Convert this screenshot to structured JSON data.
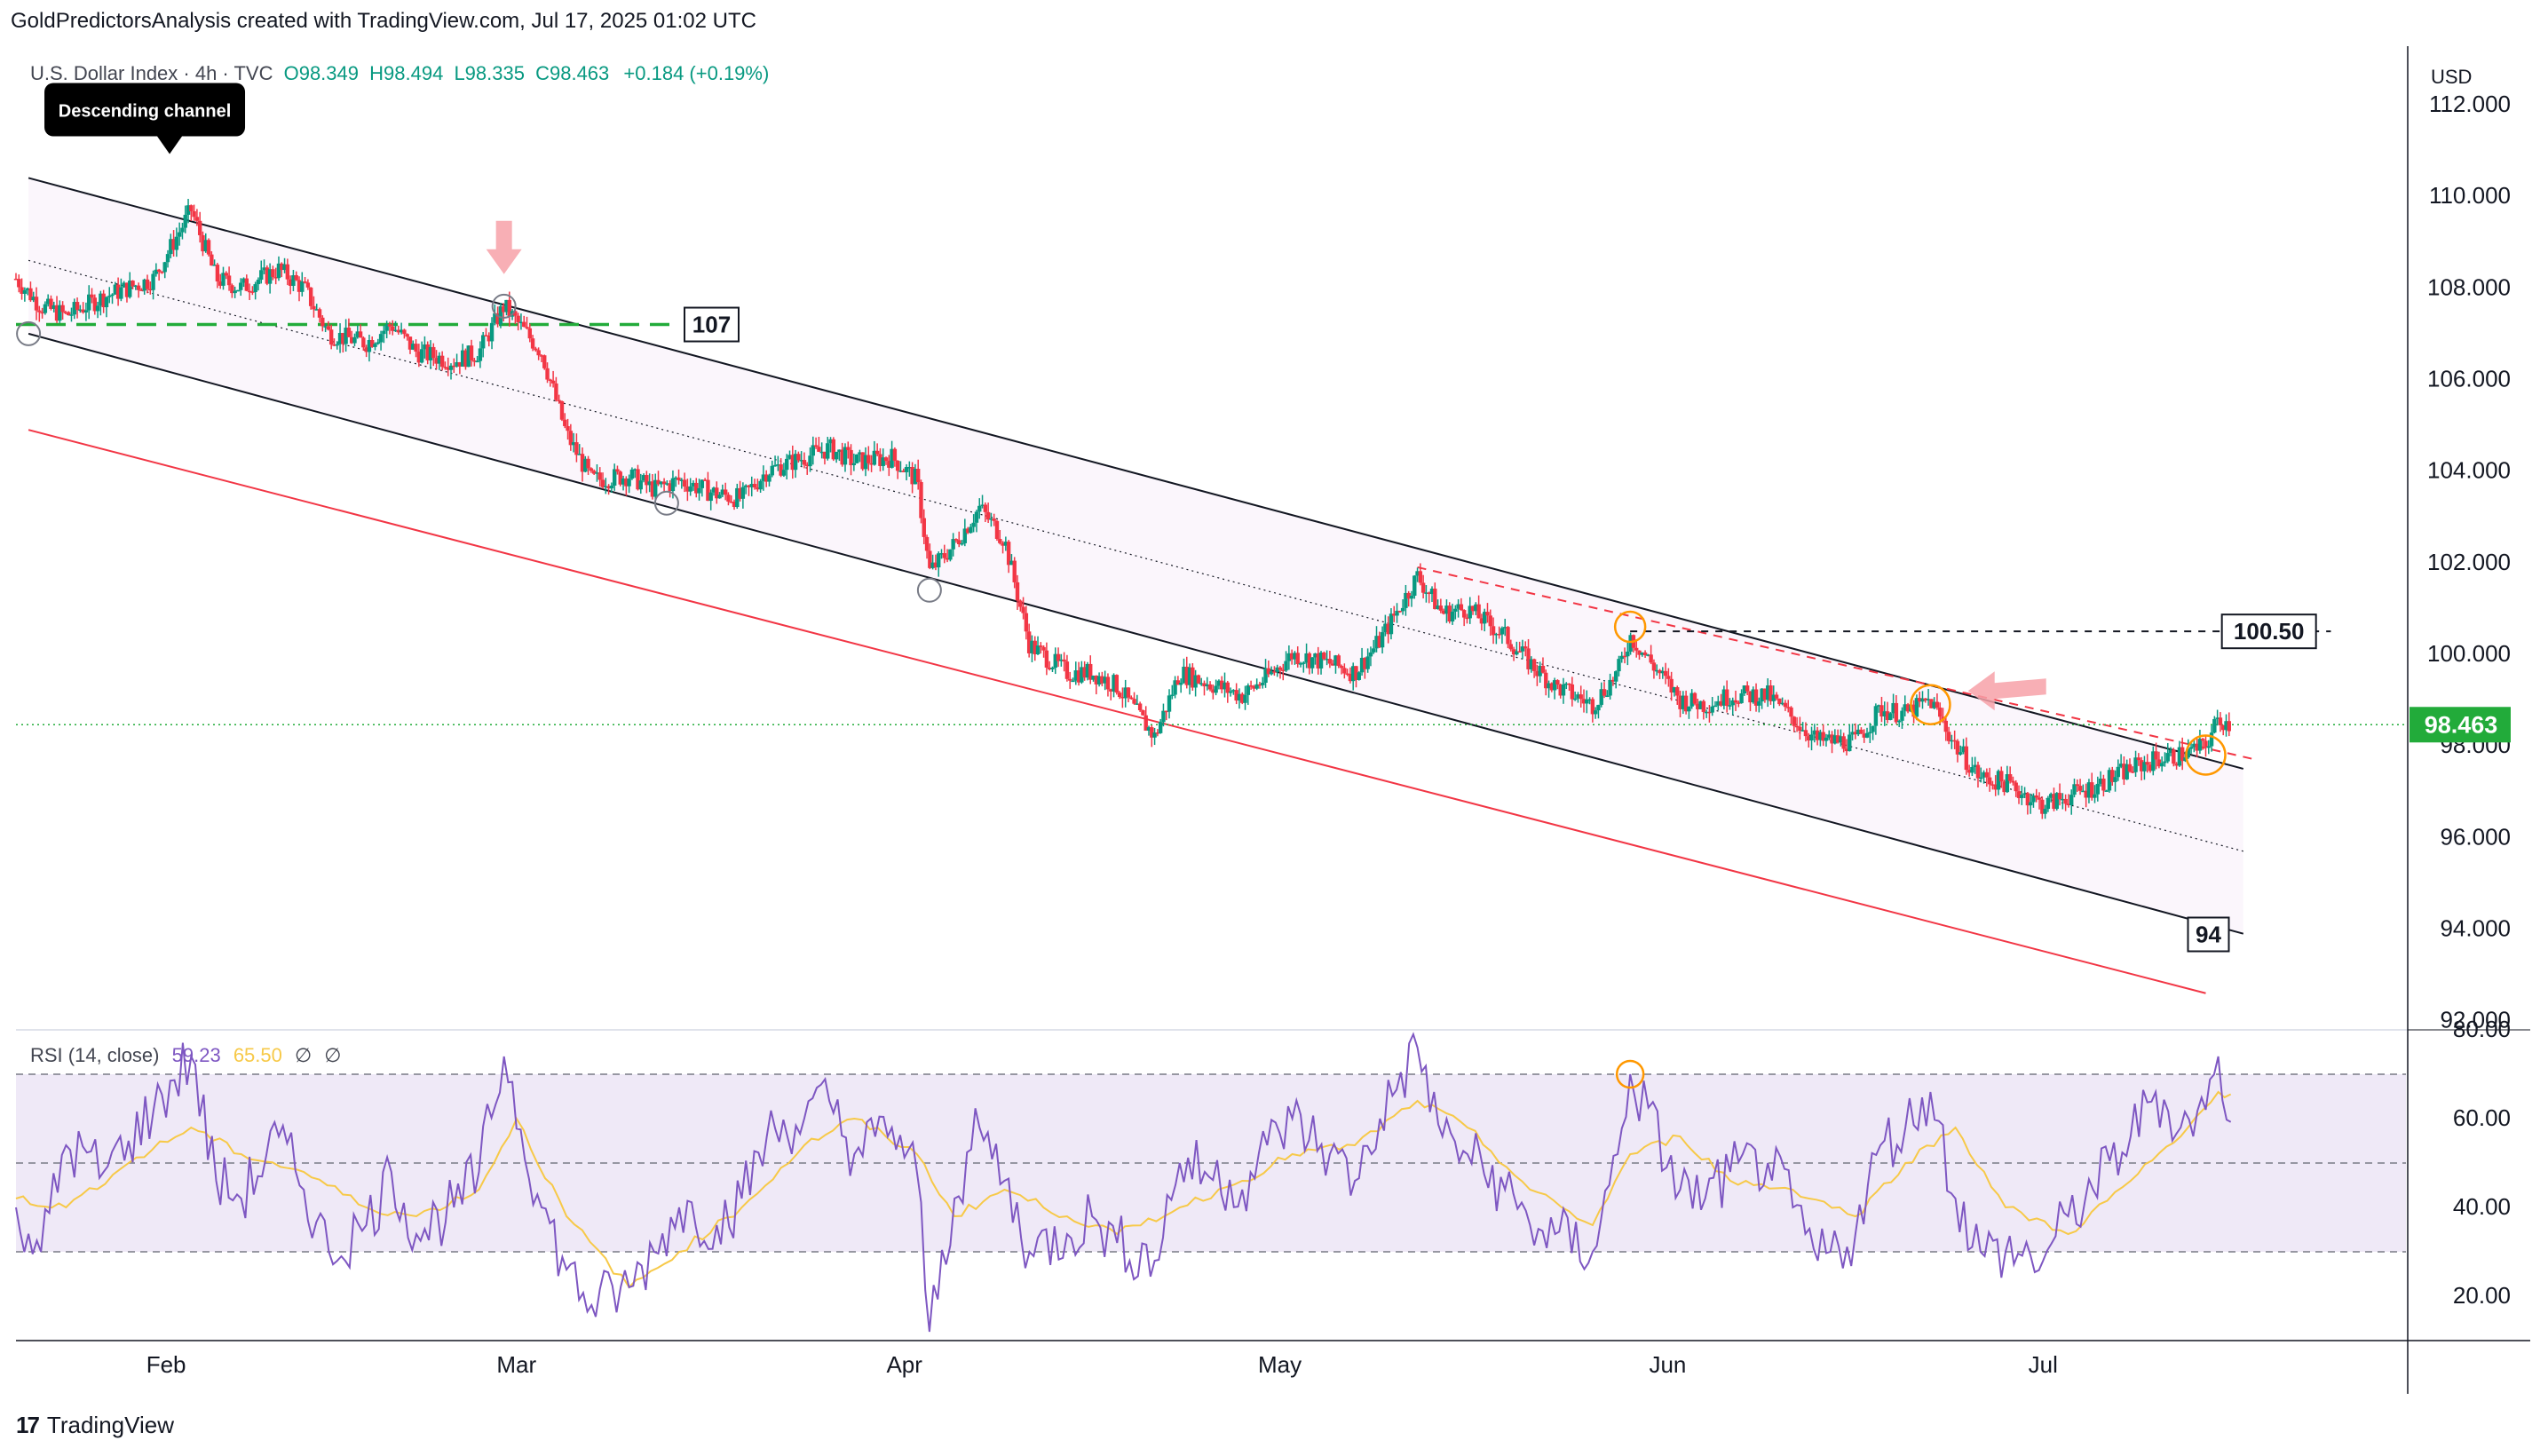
{
  "attribution": "GoldPredictorsAnalysis created with TradingView.com, Jul 17, 2025 01:02 UTC",
  "legend": {
    "symbol": "U.S. Dollar Index · 4h · TVC",
    "open": "O98.349",
    "high": "H98.494",
    "low": "L98.335",
    "close": "C98.463",
    "change": "+0.184 (+0.19%)"
  },
  "rsi_legend": {
    "label": "RSI (14, close)",
    "rsi": "59.23",
    "ma": "65.50",
    "n1": "∅",
    "n2": "∅"
  },
  "branding": {
    "text": "TradingView",
    "icon": "tradingview-logo-icon"
  },
  "colors": {
    "up": "#089981",
    "down": "#f23645",
    "channel": "#131722",
    "red_line": "#f23645",
    "level_107": "#22ab3a",
    "rsi_line": "#7e57c2",
    "rsi_ma": "#f7c948",
    "rsi_fill": "#ede7f6",
    "price_tag": "#22ab3a",
    "circle_orange": "#ff9800",
    "arrow_pink": "#f7a1a8"
  },
  "chart_data": [
    {
      "type": "candlestick",
      "title": "U.S. Dollar Index · 4h · TVC",
      "currency": "USD",
      "x_tick_labels": [
        "Feb",
        "Mar",
        "Apr",
        "May",
        "Jun",
        "Jul"
      ],
      "x_range": [
        "2025-01-20",
        "2025-07-30"
      ],
      "y_ticks": [
        "112.000",
        "110.000",
        "108.000",
        "106.000",
        "104.000",
        "102.000",
        "100.000",
        "98.000",
        "96.000",
        "94.000",
        "92.000"
      ],
      "ylim": [
        91.8,
        113.2
      ],
      "last_price": "98.463",
      "close_path": [
        [
          "2025-01-20",
          108.2
        ],
        [
          "2025-01-22",
          107.6
        ],
        [
          "2025-01-24",
          107.4
        ],
        [
          "2025-01-27",
          107.8
        ],
        [
          "2025-01-29",
          108.0
        ],
        [
          "2025-01-31",
          108.2
        ],
        [
          "2025-02-03",
          109.7
        ],
        [
          "2025-02-05",
          108.2
        ],
        [
          "2025-02-07",
          108.0
        ],
        [
          "2025-02-10",
          108.4
        ],
        [
          "2025-02-12",
          108.0
        ],
        [
          "2025-02-14",
          107.0
        ],
        [
          "2025-02-17",
          106.8
        ],
        [
          "2025-02-19",
          107.2
        ],
        [
          "2025-02-21",
          106.6
        ],
        [
          "2025-02-24",
          106.4
        ],
        [
          "2025-02-26",
          106.6
        ],
        [
          "2025-02-28",
          107.6
        ],
        [
          "2025-03-03",
          106.6
        ],
        [
          "2025-03-05",
          104.8
        ],
        [
          "2025-03-07",
          103.8
        ],
        [
          "2025-03-10",
          103.9
        ],
        [
          "2025-03-12",
          103.6
        ],
        [
          "2025-03-14",
          103.8
        ],
        [
          "2025-03-17",
          103.5
        ],
        [
          "2025-03-19",
          103.4
        ],
        [
          "2025-03-21",
          104.0
        ],
        [
          "2025-03-24",
          104.3
        ],
        [
          "2025-03-26",
          104.5
        ],
        [
          "2025-03-28",
          104.2
        ],
        [
          "2025-03-31",
          104.3
        ],
        [
          "2025-04-02",
          103.8
        ],
        [
          "2025-04-03",
          101.8
        ],
        [
          "2025-04-05",
          102.4
        ],
        [
          "2025-04-07",
          103.2
        ],
        [
          "2025-04-09",
          102.5
        ],
        [
          "2025-04-11",
          100.2
        ],
        [
          "2025-04-14",
          99.6
        ],
        [
          "2025-04-16",
          99.6
        ],
        [
          "2025-04-18",
          99.3
        ],
        [
          "2025-04-21",
          98.2
        ],
        [
          "2025-04-23",
          99.6
        ],
        [
          "2025-04-25",
          99.4
        ],
        [
          "2025-04-28",
          99.1
        ],
        [
          "2025-04-30",
          99.5
        ],
        [
          "2025-05-02",
          100.0
        ],
        [
          "2025-05-05",
          99.8
        ],
        [
          "2025-05-07",
          99.6
        ],
        [
          "2025-05-09",
          100.3
        ],
        [
          "2025-05-12",
          101.7
        ],
        [
          "2025-05-14",
          100.9
        ],
        [
          "2025-05-16",
          101.0
        ],
        [
          "2025-05-19",
          100.4
        ],
        [
          "2025-05-21",
          99.8
        ],
        [
          "2025-05-23",
          99.3
        ],
        [
          "2025-05-26",
          98.9
        ],
        [
          "2025-05-28",
          99.6
        ],
        [
          "2025-05-29",
          100.4
        ],
        [
          "2025-06-02",
          99.0
        ],
        [
          "2025-06-04",
          98.9
        ],
        [
          "2025-06-06",
          99.1
        ],
        [
          "2025-06-09",
          99.1
        ],
        [
          "2025-06-11",
          98.6
        ],
        [
          "2025-06-13",
          98.1
        ],
        [
          "2025-06-16",
          98.1
        ],
        [
          "2025-06-18",
          98.8
        ],
        [
          "2025-06-20",
          98.7
        ],
        [
          "2025-06-22",
          99.0
        ],
        [
          "2025-06-24",
          98.0
        ],
        [
          "2025-06-26",
          97.3
        ],
        [
          "2025-06-28",
          97.2
        ],
        [
          "2025-07-01",
          96.7
        ],
        [
          "2025-07-03",
          96.9
        ],
        [
          "2025-07-05",
          97.1
        ],
        [
          "2025-07-08",
          97.5
        ],
        [
          "2025-07-10",
          97.7
        ],
        [
          "2025-07-12",
          97.8
        ],
        [
          "2025-07-14",
          98.0
        ],
        [
          "2025-07-15",
          98.6
        ],
        [
          "2025-07-16",
          98.463
        ]
      ],
      "descending_channel": {
        "upper": [
          [
            "2025-01-21",
            110.4
          ],
          [
            "2025-07-17",
            97.5
          ]
        ],
        "middle": [
          [
            "2025-01-21",
            108.6
          ],
          [
            "2025-07-17",
            95.7
          ]
        ],
        "lower": [
          [
            "2025-01-21",
            107.0
          ],
          [
            "2025-07-17",
            93.9
          ]
        ],
        "red_lower": [
          [
            "2025-01-21",
            104.9
          ],
          [
            "2025-07-14",
            92.6
          ]
        ]
      },
      "resistance_dashed": [
        [
          "2025-05-12",
          101.9
        ],
        [
          "2025-07-18",
          97.7
        ]
      ],
      "levels": [
        {
          "value": 107.2,
          "label": "107",
          "from": "2025-01-20",
          "to": "2025-03-14"
        },
        {
          "value": 100.5,
          "label": "100.50",
          "from": "2025-05-29",
          "to": "2025-07-24"
        },
        {
          "value": 98.463,
          "label": "",
          "from": "2025-01-20",
          "to": "2025-07-30"
        }
      ],
      "channel_label": "94",
      "annotations": [
        {
          "text": "Descending channel",
          "date": "2025-01-31",
          "value": 111.0
        }
      ],
      "gray_circles": [
        [
          "2025-01-21",
          107.0
        ],
        [
          "2025-02-28",
          107.6
        ],
        [
          "2025-03-13",
          103.3
        ],
        [
          "2025-04-03",
          101.4
        ]
      ],
      "orange_circles": [
        [
          "2025-05-29",
          100.6
        ],
        [
          "2025-06-22",
          98.9
        ],
        [
          "2025-07-14",
          97.8
        ]
      ],
      "arrows": [
        {
          "type": "down",
          "date": "2025-02-28",
          "value": 108.3
        },
        {
          "type": "left",
          "date": "2025-06-25",
          "value": 99.2
        }
      ]
    },
    {
      "type": "line",
      "title": "RSI (14, close)",
      "y_ticks": [
        "80.00",
        "60.00",
        "40.00",
        "20.00"
      ],
      "ylim": [
        10,
        80
      ],
      "bands": {
        "upper": 70,
        "middle": 50,
        "lower": 30
      },
      "series": [
        {
          "name": "RSI",
          "values": [
            [
              [
                "2025-01-20",
                40
              ],
              [
                "2025-01-22",
                30
              ],
              [
                "2025-01-24",
                54
              ],
              [
                "2025-01-27",
                48
              ],
              [
                "2025-01-29",
                55
              ],
              [
                "2025-01-31",
                62
              ],
              [
                "2025-02-03",
                74
              ],
              [
                "2025-02-05",
                46
              ],
              [
                "2025-02-07",
                42
              ],
              [
                "2025-02-10",
                56
              ],
              [
                "2025-02-12",
                44
              ],
              [
                "2025-02-14",
                30
              ],
              [
                "2025-02-17",
                36
              ],
              [
                "2025-02-19",
                48
              ],
              [
                "2025-02-21",
                34
              ],
              [
                "2025-02-24",
                40
              ],
              [
                "2025-02-26",
                48
              ],
              [
                "2025-02-28",
                74
              ],
              [
                "2025-03-03",
                40
              ],
              [
                "2025-03-05",
                26
              ],
              [
                "2025-03-07",
                18
              ],
              [
                "2025-03-10",
                22
              ],
              [
                "2025-03-12",
                30
              ],
              [
                "2025-03-14",
                40
              ],
              [
                "2025-03-17",
                36
              ],
              [
                "2025-03-19",
                42
              ],
              [
                "2025-03-21",
                56
              ],
              [
                "2025-03-24",
                60
              ],
              [
                "2025-03-26",
                64
              ],
              [
                "2025-03-28",
                52
              ],
              [
                "2025-03-31",
                58
              ],
              [
                "2025-04-02",
                48
              ],
              [
                "2025-04-03",
                12
              ],
              [
                "2025-04-05",
                42
              ],
              [
                "2025-04-07",
                58
              ],
              [
                "2025-04-09",
                46
              ],
              [
                "2025-04-11",
                30
              ],
              [
                "2025-04-14",
                34
              ],
              [
                "2025-04-16",
                38
              ],
              [
                "2025-04-18",
                32
              ],
              [
                "2025-04-21",
                28
              ],
              [
                "2025-04-23",
                50
              ],
              [
                "2025-04-25",
                48
              ],
              [
                "2025-04-28",
                44
              ],
              [
                "2025-04-30",
                54
              ],
              [
                "2025-05-02",
                60
              ],
              [
                "2025-05-05",
                52
              ],
              [
                "2025-05-07",
                46
              ],
              [
                "2025-05-09",
                60
              ],
              [
                "2025-05-12",
                76
              ],
              [
                "2025-05-14",
                56
              ],
              [
                "2025-05-16",
                52
              ],
              [
                "2025-05-19",
                44
              ],
              [
                "2025-05-21",
                36
              ],
              [
                "2025-05-23",
                34
              ],
              [
                "2025-05-26",
                30
              ],
              [
                "2025-05-28",
                52
              ],
              [
                "2025-05-29",
                70
              ],
              [
                "2025-06-02",
                44
              ],
              [
                "2025-06-04",
                42
              ],
              [
                "2025-06-06",
                48
              ],
              [
                "2025-06-09",
                50
              ],
              [
                "2025-06-11",
                40
              ],
              [
                "2025-06-13",
                28
              ],
              [
                "2025-06-16",
                34
              ],
              [
                "2025-06-18",
                54
              ],
              [
                "2025-06-20",
                58
              ],
              [
                "2025-06-22",
                66
              ],
              [
                "2025-06-24",
                42
              ],
              [
                "2025-06-26",
                30
              ],
              [
                "2025-06-28",
                30
              ],
              [
                "2025-07-01",
                28
              ],
              [
                "2025-07-03",
                38
              ],
              [
                "2025-07-05",
                44
              ],
              [
                "2025-07-08",
                56
              ],
              [
                "2025-07-10",
                66
              ],
              [
                "2025-07-12",
                58
              ],
              [
                "2025-07-14",
                62
              ],
              [
                "2025-07-15",
                74
              ],
              [
                "2025-07-16",
                59.23
              ]
            ]
          ]
        },
        {
          "name": "RSI-based MA",
          "values": [
            [
              [
                "2025-01-20",
                42
              ],
              [
                "2025-01-24",
                40
              ],
              [
                "2025-01-29",
                50
              ],
              [
                "2025-02-03",
                58
              ],
              [
                "2025-02-07",
                52
              ],
              [
                "2025-02-12",
                48
              ],
              [
                "2025-02-17",
                40
              ],
              [
                "2025-02-21",
                38
              ],
              [
                "2025-02-26",
                44
              ],
              [
                "2025-03-01",
                60
              ],
              [
                "2025-03-05",
                38
              ],
              [
                "2025-03-10",
                22
              ],
              [
                "2025-03-14",
                30
              ],
              [
                "2025-03-19",
                40
              ],
              [
                "2025-03-24",
                54
              ],
              [
                "2025-03-28",
                60
              ],
              [
                "2025-04-02",
                52
              ],
              [
                "2025-04-05",
                38
              ],
              [
                "2025-04-09",
                44
              ],
              [
                "2025-04-14",
                38
              ],
              [
                "2025-04-18",
                34
              ],
              [
                "2025-04-23",
                40
              ],
              [
                "2025-04-28",
                46
              ],
              [
                "2025-05-02",
                52
              ],
              [
                "2025-05-07",
                54
              ],
              [
                "2025-05-12",
                64
              ],
              [
                "2025-05-16",
                58
              ],
              [
                "2025-05-21",
                44
              ],
              [
                "2025-05-26",
                36
              ],
              [
                "2025-05-29",
                52
              ],
              [
                "2025-06-02",
                56
              ],
              [
                "2025-06-06",
                46
              ],
              [
                "2025-06-11",
                44
              ],
              [
                "2025-06-16",
                38
              ],
              [
                "2025-06-20",
                50
              ],
              [
                "2025-06-24",
                58
              ],
              [
                "2025-06-28",
                40
              ],
              [
                "2025-07-03",
                34
              ],
              [
                "2025-07-08",
                46
              ],
              [
                "2025-07-12",
                56
              ],
              [
                "2025-07-15",
                66
              ],
              [
                "2025-07-16",
                65.5
              ]
            ]
          ]
        }
      ]
    }
  ]
}
